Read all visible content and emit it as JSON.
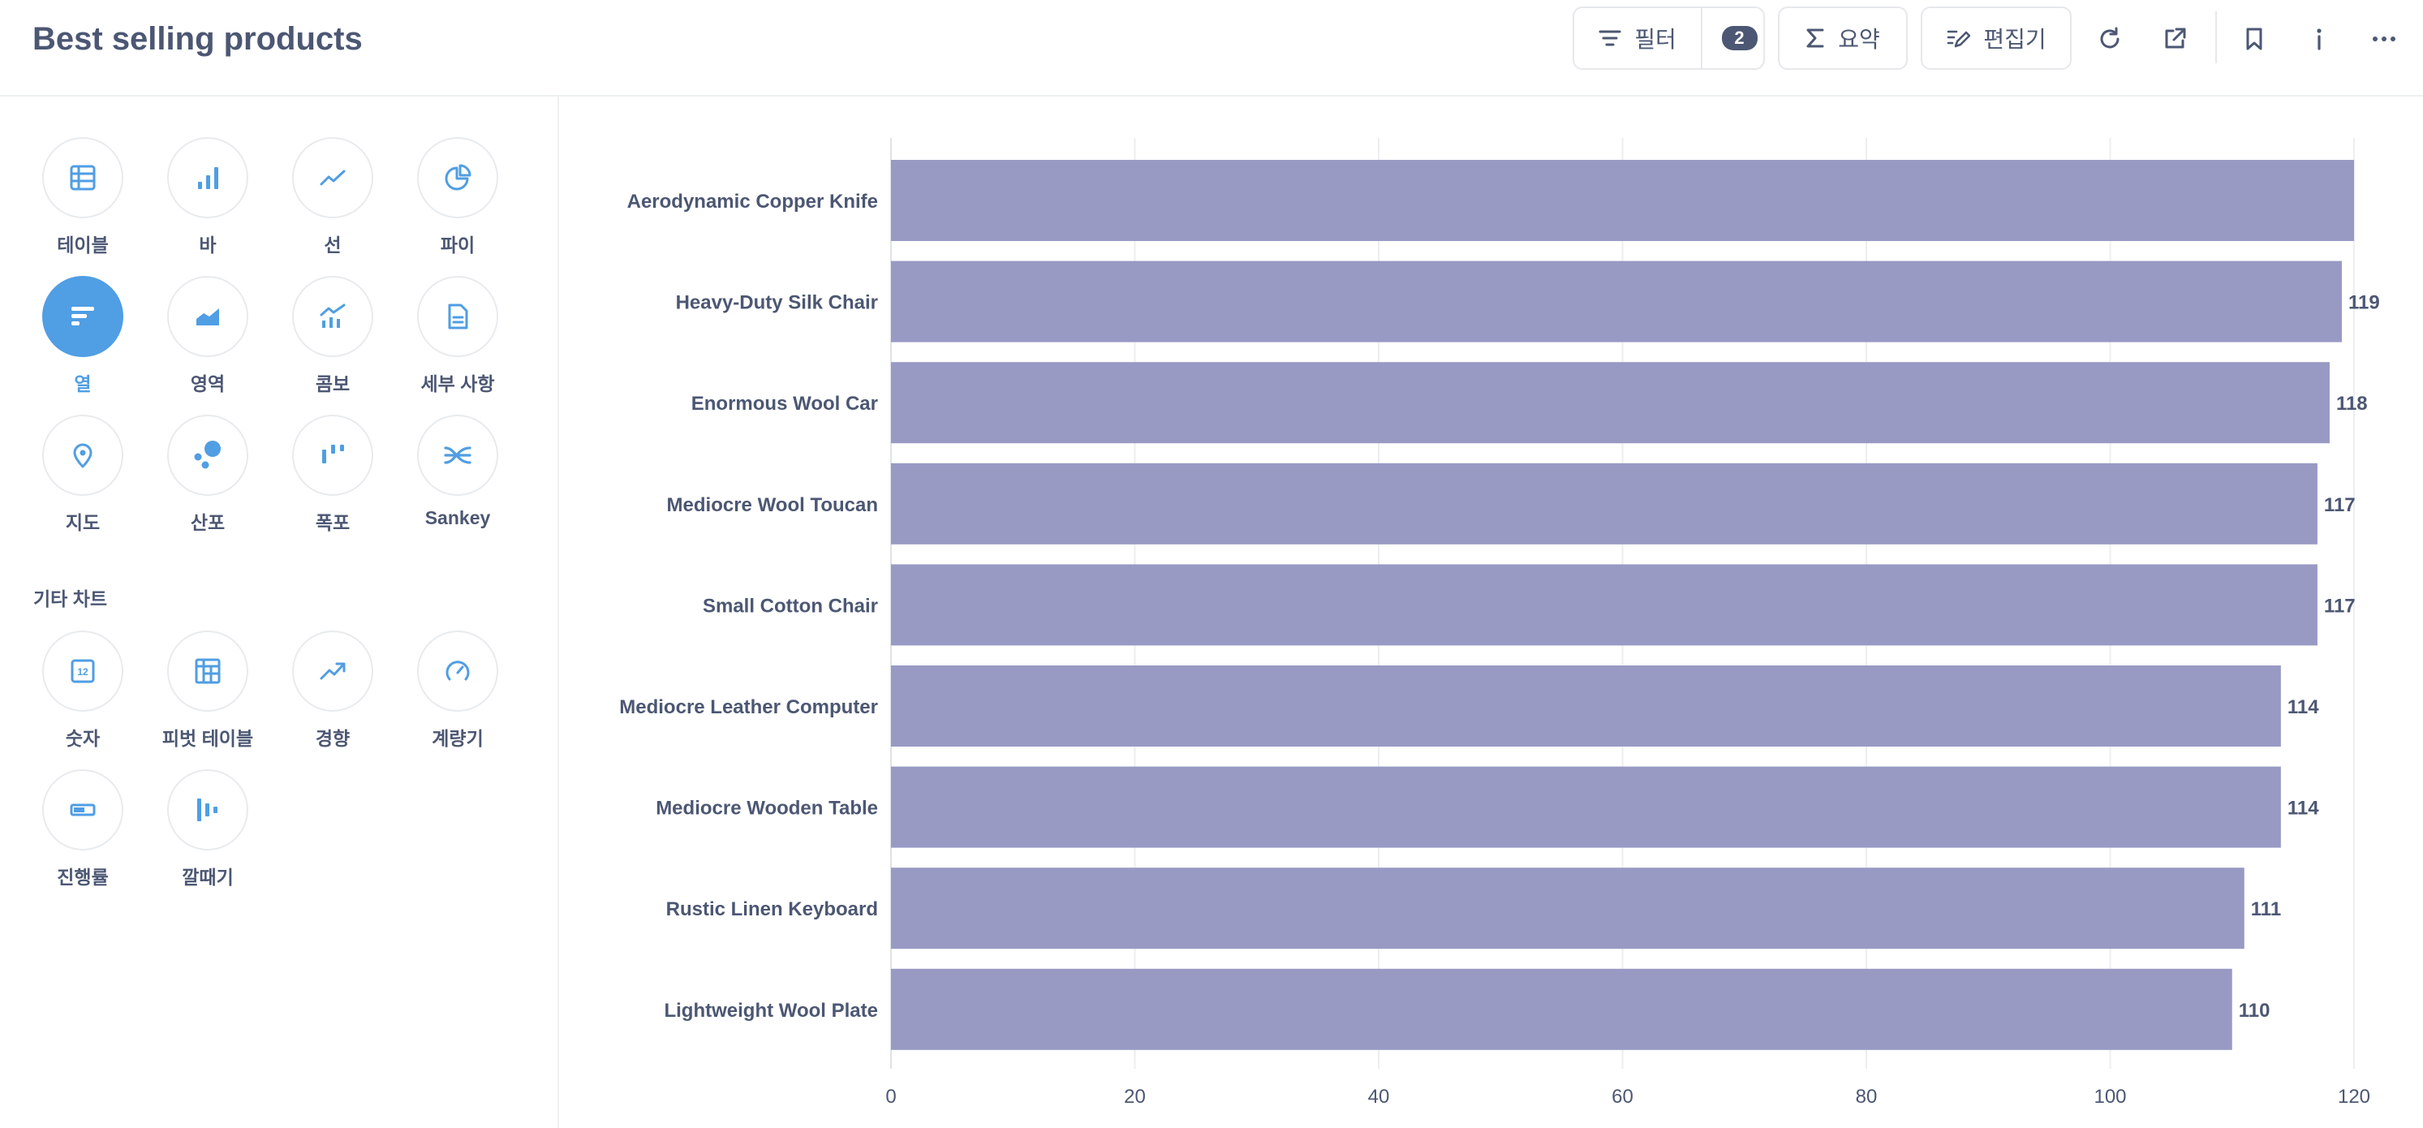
{
  "header": {
    "title": "Best selling products",
    "filter_label": "필터",
    "filter_count": "2",
    "summarize_label": "요약",
    "editor_label": "편집기"
  },
  "sidebar": {
    "charts": [
      {
        "label": "테이블",
        "icon": "table-icon"
      },
      {
        "label": "바",
        "icon": "bar-chart-icon"
      },
      {
        "label": "선",
        "icon": "line-chart-icon"
      },
      {
        "label": "파이",
        "icon": "pie-chart-icon"
      },
      {
        "label": "열",
        "icon": "row-chart-icon",
        "active": true
      },
      {
        "label": "영역",
        "icon": "area-chart-icon"
      },
      {
        "label": "콤보",
        "icon": "combo-chart-icon"
      },
      {
        "label": "세부 사항",
        "icon": "details-icon"
      },
      {
        "label": "지도",
        "icon": "map-pin-icon"
      },
      {
        "label": "산포",
        "icon": "scatter-icon"
      },
      {
        "label": "폭포",
        "icon": "waterfall-icon"
      },
      {
        "label": "Sankey",
        "icon": "sankey-icon"
      }
    ],
    "other_label": "기타 차트",
    "other_charts": [
      {
        "label": "숫자",
        "icon": "number-icon"
      },
      {
        "label": "피벗 테이블",
        "icon": "pivot-table-icon"
      },
      {
        "label": "경향",
        "icon": "trend-icon"
      },
      {
        "label": "계량기",
        "icon": "gauge-icon"
      },
      {
        "label": "진행률",
        "icon": "progress-icon"
      },
      {
        "label": "깔때기",
        "icon": "funnel-icon"
      }
    ]
  },
  "colors": {
    "bar": "#989ac4",
    "accent": "#509ee3",
    "text": "#4c5773",
    "grid": "#edeef2"
  },
  "chart_data": {
    "type": "bar",
    "orientation": "horizontal",
    "categories": [
      "Aerodynamic Copper Knife",
      "Heavy-Duty Silk Chair",
      "Enormous Wool Car",
      "Mediocre Wool Toucan",
      "Small Cotton Chair",
      "Mediocre Leather Computer",
      "Mediocre Wooden Table",
      "Rustic Linen Keyboard",
      "Lightweight Wool Plate"
    ],
    "values": [
      120,
      119,
      118,
      117,
      117,
      114,
      114,
      111,
      110
    ],
    "value_labels": [
      "",
      "119",
      "118",
      "117",
      "117",
      "114",
      "114",
      "111",
      "110"
    ],
    "xlim": [
      0,
      120
    ],
    "ticks": [
      0,
      20,
      40,
      60,
      80,
      100,
      120
    ],
    "grid": true
  }
}
